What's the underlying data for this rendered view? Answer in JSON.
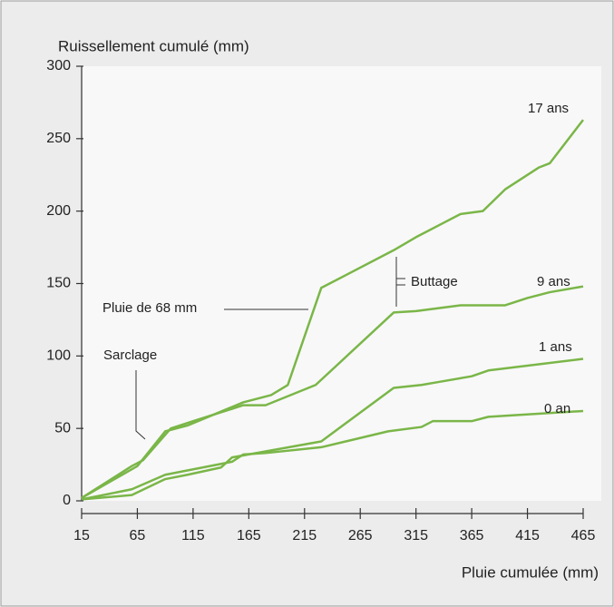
{
  "chart_data": {
    "type": "line",
    "ylabel": "Ruissellement cumulé (mm)",
    "xlabel": "Pluie cumulée (mm)",
    "annotations": [
      "Sarclage",
      "Pluie de 68 mm",
      "Buttage"
    ],
    "xlim": [
      15,
      465
    ],
    "xticks": [
      15,
      65,
      115,
      165,
      215,
      265,
      315,
      365,
      415,
      465
    ],
    "ylim": [
      0,
      300
    ],
    "yticks": [
      0,
      50,
      100,
      150,
      200,
      250,
      300
    ],
    "series": [
      {
        "name": "17 ans",
        "color": "#7ab648",
        "x": [
          15,
          65,
          90,
          110,
          135,
          160,
          185,
          200,
          230,
          295,
          315,
          340,
          355,
          375,
          395,
          425,
          435,
          465
        ],
        "values": [
          2,
          24,
          48,
          52,
          60,
          68,
          73,
          80,
          147,
          173,
          182,
          192,
          198,
          200,
          215,
          230,
          233,
          263
        ]
      },
      {
        "name": "9 ans",
        "color": "#7ab648",
        "x": [
          15,
          60,
          70,
          95,
          115,
          160,
          180,
          225,
          295,
          315,
          355,
          395,
          415,
          435,
          465
        ],
        "values": [
          2,
          24,
          28,
          50,
          55,
          66,
          66,
          80,
          130,
          131,
          135,
          135,
          140,
          144,
          148
        ]
      },
      {
        "name": "1 ans",
        "color": "#7ab648",
        "x": [
          15,
          60,
          90,
          110,
          140,
          150,
          230,
          295,
          320,
          335,
          365,
          380,
          465
        ],
        "values": [
          1,
          4,
          15,
          18,
          23,
          30,
          41,
          78,
          80,
          82,
          86,
          90,
          98
        ]
      },
      {
        "name": "0 an",
        "color": "#7ab648",
        "x": [
          15,
          60,
          90,
          150,
          160,
          180,
          230,
          290,
          320,
          330,
          365,
          380,
          465
        ],
        "values": [
          1,
          8,
          18,
          27,
          32,
          33,
          37,
          48,
          51,
          55,
          55,
          58,
          62
        ]
      }
    ]
  }
}
